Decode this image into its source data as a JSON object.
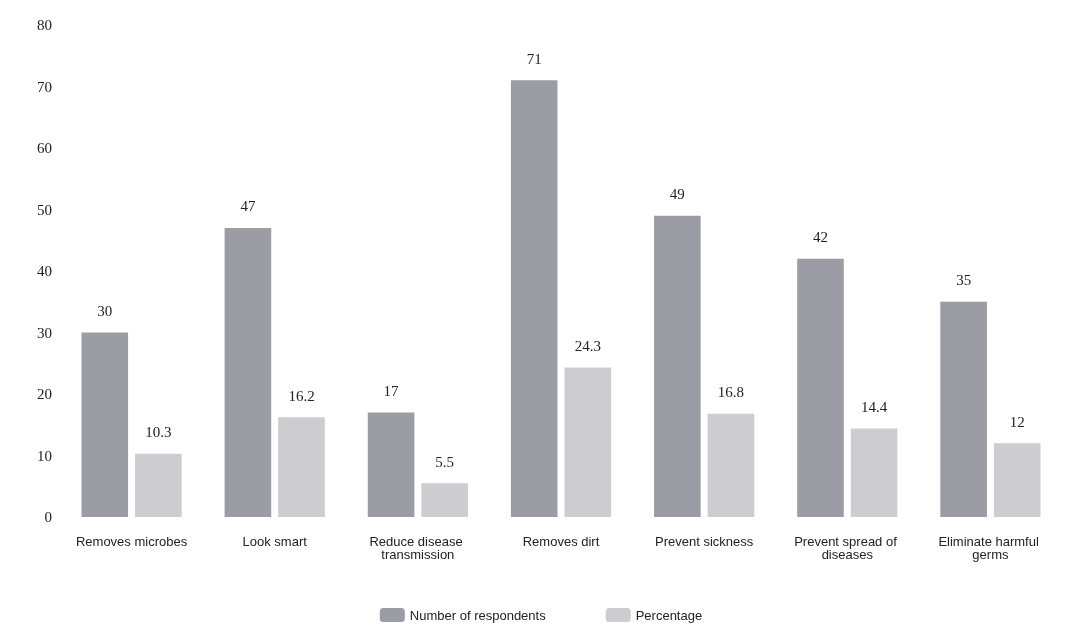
{
  "chart_data": {
    "type": "bar",
    "categories": [
      "Removes microbes",
      "Look smart",
      "Reduce disease transmission",
      "Removes dirt",
      "Prevent sickness",
      "Prevent spread of diseases",
      "Eliminate harmful germs"
    ],
    "series": [
      {
        "name": "Number of respondents",
        "color": "#9c9ca4",
        "values": [
          30,
          47,
          17,
          71,
          49,
          42,
          35
        ]
      },
      {
        "name": "Percentage",
        "color": "#cdcdd1",
        "values": [
          10.3,
          16.2,
          5.5,
          24.3,
          16.8,
          14.4,
          12
        ]
      }
    ],
    "ylim": [
      0,
      80
    ],
    "yticks": [
      0,
      10,
      20,
      30,
      40,
      50,
      60,
      70,
      80
    ],
    "data_labels": true,
    "legend": "bottom",
    "grid": false
  }
}
